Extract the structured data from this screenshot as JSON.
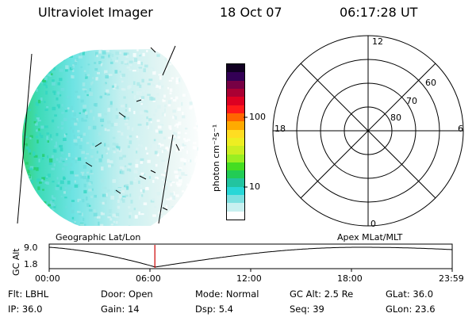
{
  "header": {
    "instrument": "Ultraviolet Imager",
    "date": "18 Oct 07",
    "time": "06:17:28 UT"
  },
  "colorbar": {
    "unit_label": "photon cm⁻²s⁻¹",
    "ticks": [
      "100",
      "10"
    ],
    "colors": [
      "#ffffff",
      "#c8f0f0",
      "#7de0e0",
      "#28d7d7",
      "#22c4a0",
      "#22cc55",
      "#44dd22",
      "#99ee22",
      "#ccee22",
      "#eeee22",
      "#ffdd22",
      "#ffaa00",
      "#ff6600",
      "#ff1a1a",
      "#dd0022",
      "#aa0033",
      "#770044",
      "#330055",
      "#110022"
    ]
  },
  "left_panel": {
    "caption": "Geographic Lat/Lon"
  },
  "polar_plot": {
    "caption": "Apex MLat/MLT",
    "mlt_labels": {
      "top": "12",
      "left": "18",
      "right": "6",
      "bottom": "0"
    },
    "lat_labels": [
      "60",
      "70",
      "80"
    ]
  },
  "altitude_strip": {
    "ylabel": "GC Alt",
    "ytick_high": "9.0",
    "ytick_low": "1.8",
    "xticks": [
      "00:00",
      "06:00",
      "12:00",
      "18:00",
      "23:59"
    ],
    "current_time_fraction": 0.2622
  },
  "info": {
    "flt": {
      "label": "Flt:",
      "value": "LBHL"
    },
    "door": {
      "label": "Door:",
      "value": "Open"
    },
    "mode": {
      "label": "Mode:",
      "value": "Normal"
    },
    "gcalt": {
      "label": "GC Alt:",
      "value": "2.5 Re"
    },
    "glat": {
      "label": "GLat:",
      "value": "36.0"
    },
    "ip": {
      "label": "IP:",
      "value": "36.0"
    },
    "gain": {
      "label": "Gain:",
      "value": "14"
    },
    "dsp": {
      "label": "Dsp:",
      "value": "5.4"
    },
    "seq": {
      "label": "Seq:",
      "value": "39"
    },
    "glon": {
      "label": "GLon:",
      "value": "23.6"
    }
  }
}
